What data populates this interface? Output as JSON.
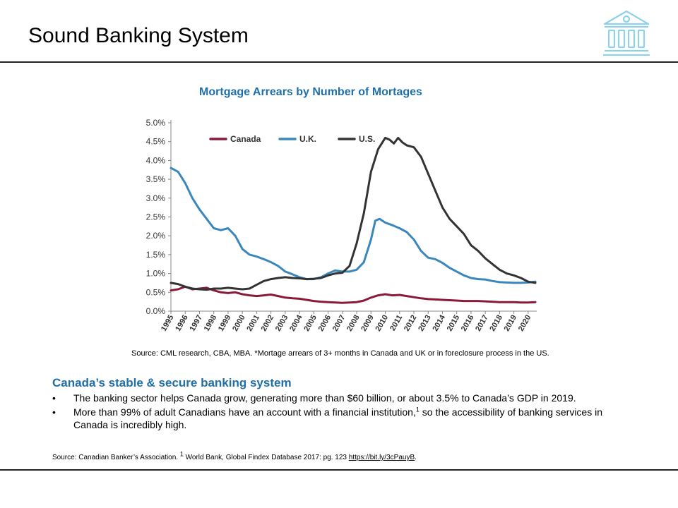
{
  "slide": {
    "title": "Sound Banking System",
    "icon": "bank-building-icon",
    "icon_color": "#8fd0ea"
  },
  "chart_data": {
    "type": "line",
    "title": "Mortgage Arrears by Number of Mortages",
    "xlabel": "",
    "ylabel": "",
    "ylim": [
      0,
      5
    ],
    "xlim": [
      1995,
      2020.6
    ],
    "y_ticks": [
      "0.0%",
      "0.5%",
      "1.0%",
      "1.5%",
      "2.0%",
      "2.5%",
      "3.0%",
      "3.5%",
      "4.0%",
      "4.5%",
      "5.0%"
    ],
    "x_ticks": [
      "1995",
      "1996",
      "1997",
      "1998",
      "1999",
      "2000",
      "2001",
      "2002",
      "2003",
      "2004",
      "2005",
      "2006",
      "2007",
      "2008",
      "2009",
      "2010",
      "2011",
      "2012",
      "2013",
      "2014",
      "2015",
      "2016",
      "2017",
      "2018",
      "2019",
      "2020"
    ],
    "grid": false,
    "legend_position": "top",
    "series": [
      {
        "name": "Canada",
        "color": "#8b1a3a",
        "points": [
          [
            1995,
            0.55
          ],
          [
            1995.5,
            0.58
          ],
          [
            1996,
            0.65
          ],
          [
            1996.5,
            0.58
          ],
          [
            1997,
            0.6
          ],
          [
            1997.5,
            0.62
          ],
          [
            1998,
            0.55
          ],
          [
            1998.5,
            0.5
          ],
          [
            1999,
            0.48
          ],
          [
            1999.5,
            0.5
          ],
          [
            2000,
            0.45
          ],
          [
            2000.5,
            0.42
          ],
          [
            2001,
            0.4
          ],
          [
            2001.5,
            0.42
          ],
          [
            2002,
            0.44
          ],
          [
            2002.5,
            0.4
          ],
          [
            2003,
            0.36
          ],
          [
            2003.5,
            0.34
          ],
          [
            2004,
            0.33
          ],
          [
            2004.5,
            0.3
          ],
          [
            2005,
            0.27
          ],
          [
            2005.5,
            0.25
          ],
          [
            2006,
            0.24
          ],
          [
            2006.5,
            0.23
          ],
          [
            2007,
            0.22
          ],
          [
            2007.5,
            0.23
          ],
          [
            2008,
            0.24
          ],
          [
            2008.5,
            0.28
          ],
          [
            2009,
            0.36
          ],
          [
            2009.5,
            0.42
          ],
          [
            2010,
            0.45
          ],
          [
            2010.5,
            0.42
          ],
          [
            2011,
            0.43
          ],
          [
            2011.5,
            0.4
          ],
          [
            2012,
            0.37
          ],
          [
            2012.5,
            0.34
          ],
          [
            2013,
            0.32
          ],
          [
            2013.5,
            0.31
          ],
          [
            2014,
            0.3
          ],
          [
            2014.5,
            0.29
          ],
          [
            2015,
            0.28
          ],
          [
            2015.5,
            0.27
          ],
          [
            2016,
            0.27
          ],
          [
            2016.5,
            0.27
          ],
          [
            2017,
            0.26
          ],
          [
            2017.5,
            0.25
          ],
          [
            2018,
            0.24
          ],
          [
            2018.5,
            0.24
          ],
          [
            2019,
            0.24
          ],
          [
            2019.5,
            0.23
          ],
          [
            2020,
            0.23
          ],
          [
            2020.5,
            0.24
          ]
        ]
      },
      {
        "name": "U.K.",
        "color": "#3a87bd",
        "points": [
          [
            1995,
            3.8
          ],
          [
            1995.5,
            3.7
          ],
          [
            1996,
            3.4
          ],
          [
            1996.5,
            3.0
          ],
          [
            1997,
            2.7
          ],
          [
            1997.5,
            2.45
          ],
          [
            1998,
            2.2
          ],
          [
            1998.5,
            2.15
          ],
          [
            1999,
            2.2
          ],
          [
            1999.5,
            2.0
          ],
          [
            2000,
            1.65
          ],
          [
            2000.5,
            1.5
          ],
          [
            2001,
            1.45
          ],
          [
            2001.5,
            1.38
          ],
          [
            2002,
            1.3
          ],
          [
            2002.5,
            1.2
          ],
          [
            2003,
            1.05
          ],
          [
            2003.5,
            0.98
          ],
          [
            2004,
            0.9
          ],
          [
            2004.5,
            0.85
          ],
          [
            2005,
            0.85
          ],
          [
            2005.5,
            0.9
          ],
          [
            2006,
            1.0
          ],
          [
            2006.5,
            1.08
          ],
          [
            2007,
            1.05
          ],
          [
            2007.5,
            1.05
          ],
          [
            2008,
            1.1
          ],
          [
            2008.5,
            1.3
          ],
          [
            2009,
            1.9
          ],
          [
            2009.3,
            2.4
          ],
          [
            2009.6,
            2.45
          ],
          [
            2010,
            2.35
          ],
          [
            2010.5,
            2.28
          ],
          [
            2011,
            2.2
          ],
          [
            2011.5,
            2.1
          ],
          [
            2012,
            1.9
          ],
          [
            2012.5,
            1.6
          ],
          [
            2013,
            1.42
          ],
          [
            2013.5,
            1.38
          ],
          [
            2014,
            1.28
          ],
          [
            2014.5,
            1.15
          ],
          [
            2015,
            1.05
          ],
          [
            2015.5,
            0.95
          ],
          [
            2016,
            0.88
          ],
          [
            2016.5,
            0.85
          ],
          [
            2017,
            0.84
          ],
          [
            2017.5,
            0.8
          ],
          [
            2018,
            0.77
          ],
          [
            2018.5,
            0.76
          ],
          [
            2019,
            0.75
          ],
          [
            2019.5,
            0.75
          ],
          [
            2020,
            0.76
          ],
          [
            2020.5,
            0.78
          ]
        ]
      },
      {
        "name": "U.S.",
        "color": "#333333",
        "points": [
          [
            1995,
            0.75
          ],
          [
            1995.5,
            0.72
          ],
          [
            1996,
            0.65
          ],
          [
            1996.5,
            0.6
          ],
          [
            1997,
            0.58
          ],
          [
            1997.5,
            0.57
          ],
          [
            1998,
            0.6
          ],
          [
            1998.5,
            0.6
          ],
          [
            1999,
            0.62
          ],
          [
            1999.5,
            0.6
          ],
          [
            2000,
            0.58
          ],
          [
            2000.5,
            0.6
          ],
          [
            2001,
            0.7
          ],
          [
            2001.5,
            0.8
          ],
          [
            2002,
            0.85
          ],
          [
            2002.5,
            0.88
          ],
          [
            2003,
            0.9
          ],
          [
            2003.5,
            0.88
          ],
          [
            2004,
            0.87
          ],
          [
            2004.5,
            0.85
          ],
          [
            2005,
            0.86
          ],
          [
            2005.5,
            0.88
          ],
          [
            2006,
            0.95
          ],
          [
            2006.5,
            1.0
          ],
          [
            2007,
            1.02
          ],
          [
            2007.5,
            1.2
          ],
          [
            2008,
            1.8
          ],
          [
            2008.5,
            2.6
          ],
          [
            2009,
            3.7
          ],
          [
            2009.5,
            4.3
          ],
          [
            2010,
            4.6
          ],
          [
            2010.3,
            4.55
          ],
          [
            2010.6,
            4.45
          ],
          [
            2010.9,
            4.6
          ],
          [
            2011.2,
            4.48
          ],
          [
            2011.5,
            4.4
          ],
          [
            2012,
            4.35
          ],
          [
            2012.5,
            4.1
          ],
          [
            2013,
            3.65
          ],
          [
            2013.5,
            3.2
          ],
          [
            2014,
            2.75
          ],
          [
            2014.5,
            2.45
          ],
          [
            2015,
            2.25
          ],
          [
            2015.5,
            2.05
          ],
          [
            2016,
            1.75
          ],
          [
            2016.5,
            1.6
          ],
          [
            2017,
            1.4
          ],
          [
            2017.5,
            1.25
          ],
          [
            2018,
            1.1
          ],
          [
            2018.5,
            1.0
          ],
          [
            2019,
            0.95
          ],
          [
            2019.5,
            0.88
          ],
          [
            2020,
            0.78
          ],
          [
            2020.5,
            0.75
          ]
        ]
      }
    ],
    "source_note": "Source: CML research, CBA, MBA.  *Mortage arrears of 3+ months in Canada and UK or in foreclosure process in the US."
  },
  "section": {
    "heading": "Canada’s stable & secure banking system",
    "bullet_symbol": "•",
    "bullets": [
      {
        "text": "The banking sector helps Canada grow, generating more than $60 billion, or about 3.5% to Canada’s GDP in 2019."
      },
      {
        "text_before": "More than 99% of adult Canadians have an account with a financial institution,",
        "sup": "1",
        "text_after": " so the accessibility of banking services in Canada is incredibly high."
      }
    ]
  },
  "footer": {
    "text_before": "Source: Canadian Banker’s Association. ",
    "sup": "1",
    "text_middle": " World Bank, Global Findex Database 2017: pg. 123 ",
    "link": "https://bit.ly/3cPauyB",
    "text_after": "."
  }
}
